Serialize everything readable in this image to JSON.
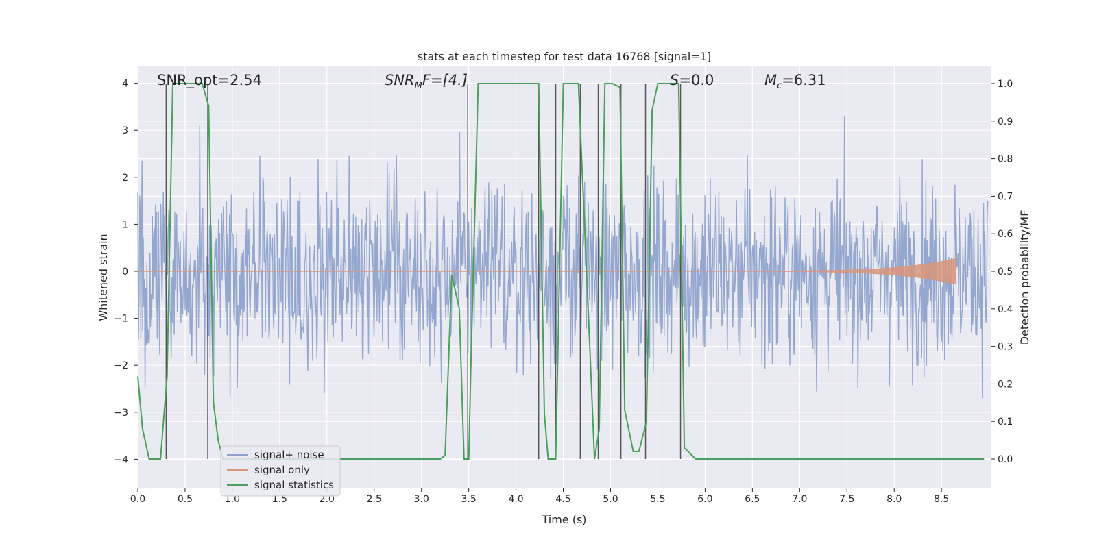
{
  "chart_data": {
    "type": "line",
    "title": "stats at each timestep for test data 16768 [signal=1]",
    "xlabel": "Time (s)",
    "ylabel_left": "Whitened strain",
    "ylabel_right": "Detection probability/MF",
    "xlim": [
      0.0,
      9.0
    ],
    "ylim_left": [
      -4.4,
      4.4
    ],
    "ylim_right": [
      -0.05,
      1.05
    ],
    "x_ticks": [
      "0.0",
      "0.5",
      "1.0",
      "1.5",
      "2.0",
      "2.5",
      "3.0",
      "3.5",
      "4.0",
      "4.5",
      "5.0",
      "5.5",
      "6.0",
      "6.5",
      "7.0",
      "7.5",
      "8.0",
      "8.5"
    ],
    "y_left_ticks": [
      "4",
      "3",
      "2",
      "1",
      "0",
      "−1",
      "−2",
      "−3",
      "−4"
    ],
    "y_right_ticks": [
      "1.0",
      "0.9",
      "0.8",
      "0.7",
      "0.6",
      "0.5",
      "0.4",
      "0.3",
      "0.2",
      "0.1",
      "0.0"
    ],
    "grid": true,
    "legend_position": "lower-left",
    "annotations": {
      "snr_opt": "SNR_opt=2.54",
      "snr_mf_base": "SNR",
      "snr_mf_sub": "M",
      "snr_mf_tail": "F=[4.]",
      "s_italic": "S",
      "s_tail": "=0.0",
      "mc_base": "M",
      "mc_sub": "c",
      "mc_tail": "=6.31"
    },
    "series": [
      {
        "name": "signal+ noise",
        "color": "#8fa3cc",
        "description": "whitened strain, approx. 9 s of noise with amplitude up to about 3.3"
      },
      {
        "name": "signal only",
        "color": "#d9957a",
        "chirp_start": 5.2,
        "chirp_end": 8.65,
        "peak_amplitude": 0.27
      },
      {
        "name": "signal statistics",
        "color": "#4aa05a",
        "x": [
          0.0,
          0.05,
          0.12,
          0.24,
          0.31,
          0.37,
          0.5,
          0.68,
          0.75,
          0.8,
          0.85,
          0.9,
          1.2,
          2.0,
          3.0,
          3.2,
          3.25,
          3.32,
          3.4,
          3.45,
          3.5,
          3.52,
          3.6,
          3.8,
          4.1,
          4.24,
          4.3,
          4.34,
          4.42,
          4.5,
          4.6,
          4.66,
          4.76,
          4.83,
          4.88,
          4.94,
          5.02,
          5.1,
          5.15,
          5.24,
          5.3,
          5.38,
          5.44,
          5.5,
          5.58,
          5.72,
          5.78,
          5.9,
          6.5,
          7.5,
          8.5,
          8.95
        ],
        "y": [
          0.22,
          0.08,
          0.0,
          0.0,
          0.22,
          1.0,
          1.0,
          1.0,
          0.94,
          0.15,
          0.05,
          0.0,
          0.0,
          0.0,
          0.0,
          0.0,
          0.01,
          0.49,
          0.4,
          0.0,
          0.0,
          0.22,
          1.0,
          1.0,
          1.0,
          1.0,
          0.12,
          0.0,
          0.0,
          1.0,
          1.0,
          1.0,
          0.42,
          0.0,
          0.08,
          1.0,
          1.0,
          0.99,
          0.13,
          0.02,
          0.02,
          0.1,
          0.93,
          1.0,
          1.0,
          1.0,
          0.03,
          0.0,
          0.0,
          0.0,
          0.0,
          0.0
        ]
      }
    ],
    "vertical_markers_time_s": [
      0.3,
      0.74,
      3.49,
      4.24,
      4.42,
      4.68,
      4.87,
      5.11,
      5.37,
      5.74
    ]
  }
}
